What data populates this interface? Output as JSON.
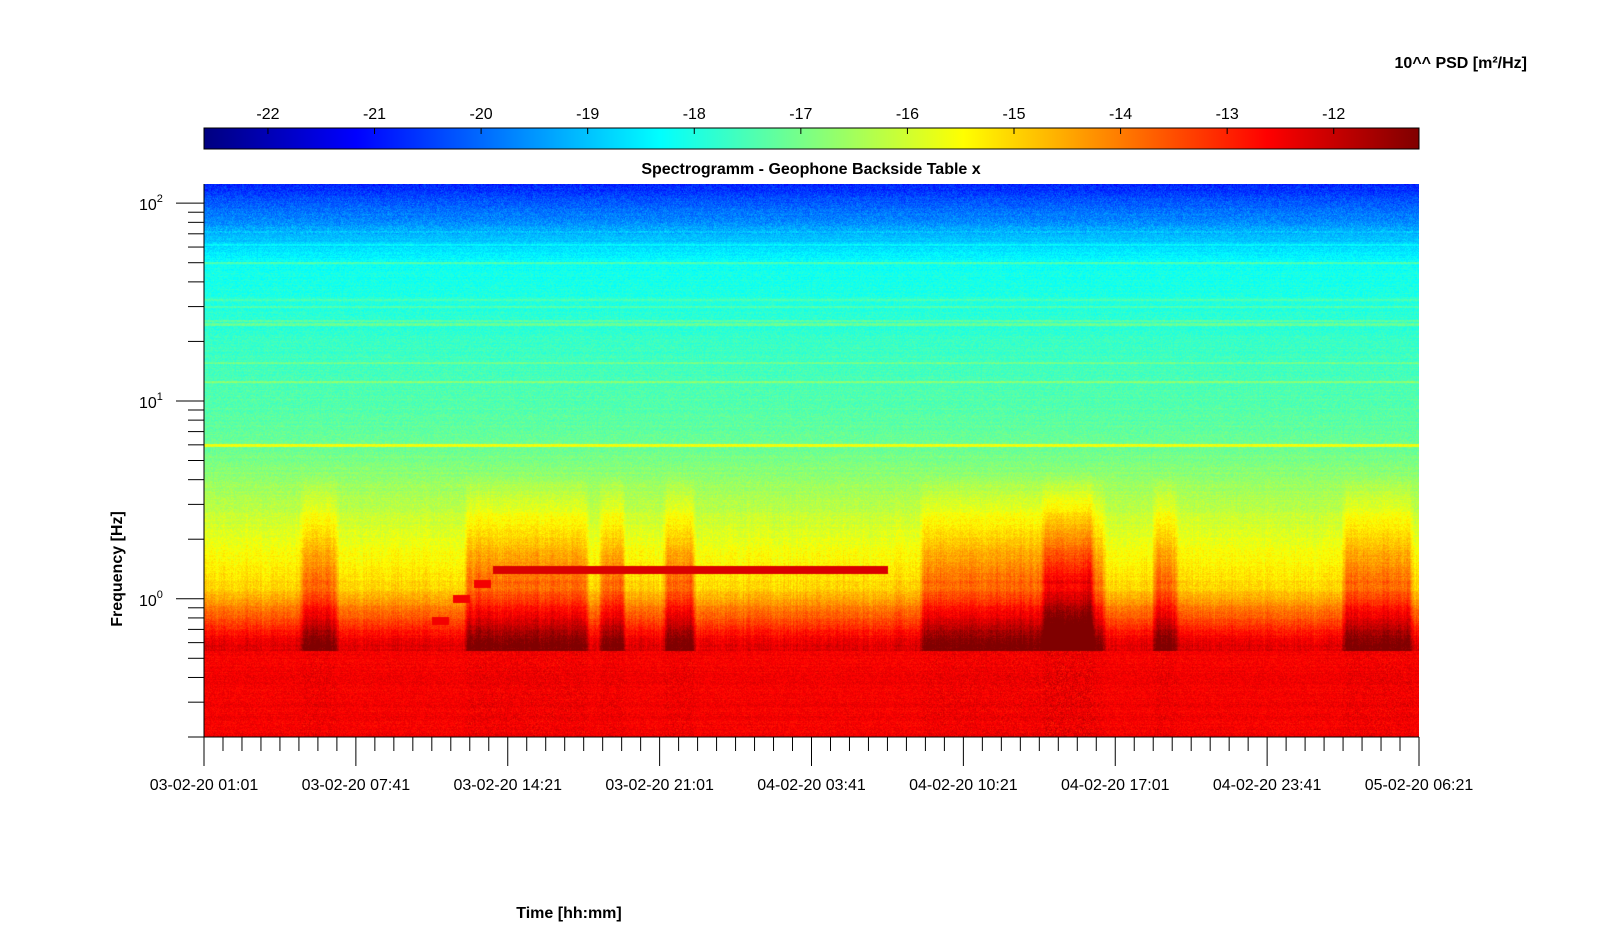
{
  "chart_data": {
    "type": "heatmap",
    "title": "Spectrogramm - Geophone Backside Table x",
    "xlabel": "Time [hh:mm]",
    "ylabel": "Frequency [Hz]",
    "yscale": "log",
    "ylim": [
      0.2,
      125
    ],
    "x_tick_labels": [
      "03-02-20 01:01",
      "03-02-20 07:41",
      "03-02-20 14:21",
      "03-02-20 21:01",
      "04-02-20 03:41",
      "04-02-20 10:21",
      "04-02-20 17:01",
      "04-02-20 23:41",
      "05-02-20 06:21"
    ],
    "y_ticks": [
      {
        "base": "10",
        "exp": "0",
        "value": 1
      },
      {
        "base": "10",
        "exp": "1",
        "value": 10
      },
      {
        "base": "10",
        "exp": "2",
        "value": 100
      }
    ],
    "colorbar": {
      "label": "10^^ PSD [m²/Hz]",
      "ticks": [
        "-22",
        "-21",
        "-20",
        "-19",
        "-18",
        "-17",
        "-16",
        "-15",
        "-14",
        "-13",
        "-12"
      ],
      "range": [
        -22.6,
        -11.2
      ],
      "colormap": "jet"
    },
    "features": [
      {
        "name": "steady 6 Hz line",
        "freq_hz": 6.0,
        "log10_psd": -15.5
      },
      {
        "name": "calibration step 1",
        "start": "03-02-20 11:00",
        "end": "03-02-20 11:45",
        "freq_hz": 0.78,
        "log10_psd": -12.5
      },
      {
        "name": "calibration step 2",
        "start": "03-02-20 11:55",
        "end": "03-02-20 12:40",
        "freq_hz": 1.0,
        "log10_psd": -12.5
      },
      {
        "name": "calibration step 3",
        "start": "03-02-20 12:50",
        "end": "03-02-20 13:35",
        "freq_hz": 1.2,
        "log10_psd": -12.5
      },
      {
        "name": "tone",
        "start": "03-02-20 13:40",
        "end": "04-02-20 07:00",
        "freq_hz": 1.4,
        "log10_psd": -12.2
      }
    ]
  },
  "colors": {
    "jet": [
      "#00007f",
      "#0000ff",
      "#007fff",
      "#00ffff",
      "#7fff7f",
      "#ffff00",
      "#ff7f00",
      "#ff0000",
      "#7f0000"
    ]
  }
}
